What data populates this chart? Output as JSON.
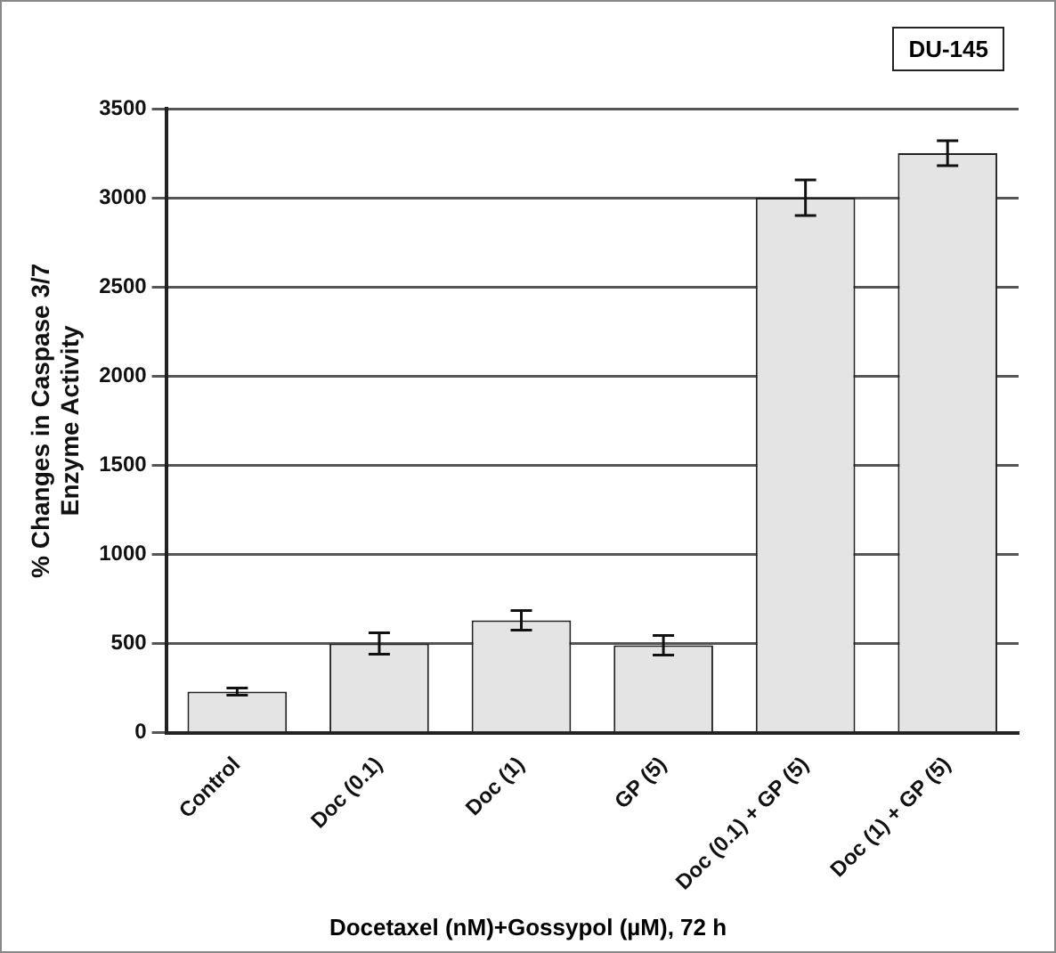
{
  "chart_data": {
    "type": "bar",
    "xlabel": "Docetaxel (nM)+Gossypol (µM), 72 h",
    "ylabel": "% Changes in Caspase 3/7\nEnzyme Activity",
    "annotations": [
      "DU-145"
    ],
    "categories": [
      "Control",
      "Doc (0.1)",
      "Doc (1)",
      "GP (5)",
      "Doc (0.1) + GP (5)",
      "Doc (1) + GP (5)"
    ],
    "values": [
      230,
      500,
      630,
      490,
      3000,
      3250
    ],
    "errors": [
      20,
      60,
      55,
      55,
      100,
      70
    ],
    "color": "#e4e4e4",
    "ylim": [
      0,
      3500
    ],
    "yticks": [
      0,
      500,
      1000,
      1500,
      2000,
      2500,
      3000,
      3500
    ],
    "grid": "y",
    "legend": false
  }
}
